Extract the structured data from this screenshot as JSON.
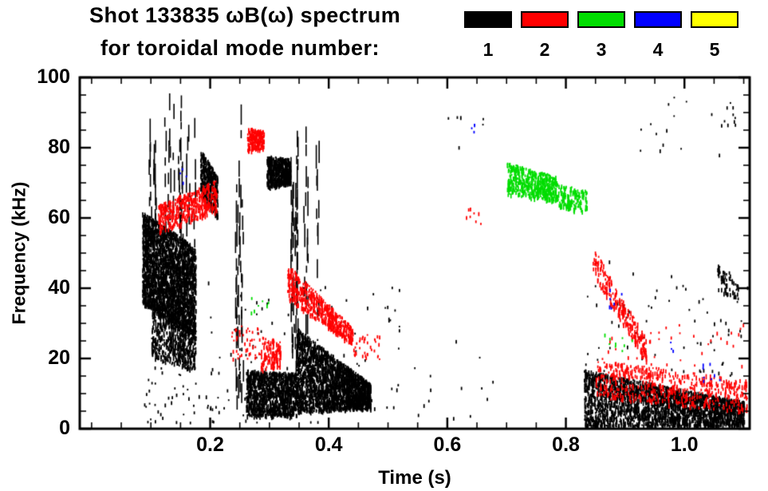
{
  "chart_data": {
    "type": "scatter",
    "title": "Shot 133835 ωB(ω) spectrum",
    "subtitle": "for toroidal mode number:",
    "xlabel": "Time (s)",
    "ylabel": "Frequency (kHz)",
    "xlim": [
      -0.02,
      1.11
    ],
    "ylim": [
      0,
      100
    ],
    "xticks": [
      0.2,
      0.4,
      0.6,
      0.8,
      1.0
    ],
    "yticks": [
      0,
      20,
      40,
      60,
      80,
      100
    ],
    "x_minor_step": 0.05,
    "y_minor_step": 5,
    "grid": false,
    "legend_position": "top-right",
    "legend": [
      {
        "label": "1",
        "color": "#000000"
      },
      {
        "label": "2",
        "color": "#ff0000"
      },
      {
        "label": "3",
        "color": "#00dd00"
      },
      {
        "label": "4",
        "color": "#0000ff"
      },
      {
        "label": "5",
        "color": "#ffff00"
      }
    ],
    "clusters": [
      {
        "mode": 1,
        "shape": "band",
        "t": [
          0.085,
          0.175
        ],
        "f0": [
          36,
          62
        ],
        "f1": [
          26,
          52
        ],
        "n": 2600
      },
      {
        "mode": 1,
        "shape": "band",
        "t": [
          0.1,
          0.175
        ],
        "f0": [
          20,
          38
        ],
        "f1": [
          17,
          28
        ],
        "n": 500
      },
      {
        "mode": 1,
        "shape": "streaks",
        "t": [
          0.095,
          0.175
        ],
        "f0": [
          50,
          62
        ],
        "f1": [
          72,
          97
        ],
        "n": 16
      },
      {
        "mode": 1,
        "shape": "streaks",
        "t": [
          0.1,
          0.17
        ],
        "f0": [
          18,
          24
        ],
        "f1": [
          30,
          45
        ],
        "n": 10
      },
      {
        "mode": 1,
        "shape": "band",
        "t": [
          0.183,
          0.212
        ],
        "f0": [
          67,
          80
        ],
        "f1": [
          60,
          72
        ],
        "n": 380
      },
      {
        "mode": 1,
        "shape": "specks",
        "t": [
          0.08,
          0.22
        ],
        "f0": [
          2,
          18
        ],
        "n": 50
      },
      {
        "mode": 1,
        "shape": "streaks",
        "t": [
          0.24,
          0.255
        ],
        "f0": [
          5,
          12
        ],
        "f1": [
          60,
          95
        ],
        "n": 5
      },
      {
        "mode": 1,
        "shape": "band",
        "t": [
          0.26,
          0.345
        ],
        "f0": [
          4,
          17
        ],
        "f1": [
          4,
          16
        ],
        "n": 1100
      },
      {
        "mode": 1,
        "shape": "band",
        "t": [
          0.295,
          0.335
        ],
        "f0": [
          69,
          78
        ],
        "f1": [
          70,
          77
        ],
        "n": 520
      },
      {
        "mode": 1,
        "shape": "streaks",
        "t": [
          0.332,
          0.348
        ],
        "f0": [
          12,
          20
        ],
        "f1": [
          68,
          92
        ],
        "n": 6
      },
      {
        "mode": 1,
        "shape": "band",
        "t": [
          0.345,
          0.47
        ],
        "f0": [
          5,
          29
        ],
        "f1": [
          6,
          13
        ],
        "n": 2300
      },
      {
        "mode": 1,
        "shape": "streaks",
        "t": [
          0.358,
          0.382
        ],
        "f0": [
          26,
          34
        ],
        "f1": [
          58,
          88
        ],
        "n": 5
      },
      {
        "mode": 1,
        "shape": "specks",
        "t": [
          0.19,
          0.52
        ],
        "f0": [
          2,
          42
        ],
        "n": 110
      },
      {
        "mode": 1,
        "shape": "specks",
        "t": [
          0.53,
          0.68
        ],
        "f0": [
          3,
          26
        ],
        "n": 14
      },
      {
        "mode": 1,
        "shape": "specks",
        "t": [
          0.6,
          0.67
        ],
        "f0": [
          80,
          90
        ],
        "n": 6
      },
      {
        "mode": 1,
        "shape": "band",
        "t": [
          0.83,
          1.1
        ],
        "f0": [
          1,
          17
        ],
        "f1": [
          1,
          8
        ],
        "n": 2500
      },
      {
        "mode": 1,
        "shape": "specks",
        "t": [
          0.83,
          1.12
        ],
        "f0": [
          14,
          48
        ],
        "n": 70
      },
      {
        "mode": 1,
        "shape": "specks",
        "t": [
          0.92,
          1.06
        ],
        "f0": [
          78,
          95
        ],
        "n": 14
      },
      {
        "mode": 1,
        "shape": "band",
        "t": [
          1.055,
          1.09
        ],
        "f0": [
          40,
          47
        ],
        "f1": [
          36,
          42
        ],
        "n": 70
      },
      {
        "mode": 1,
        "shape": "specks",
        "t": [
          1.06,
          1.09
        ],
        "f0": [
          84,
          93
        ],
        "n": 10
      },
      {
        "mode": 2,
        "shape": "band",
        "t": [
          0.112,
          0.21
        ],
        "f0": [
          56,
          64
        ],
        "f1": [
          62,
          71
        ],
        "n": 430
      },
      {
        "mode": 2,
        "shape": "band",
        "t": [
          0.262,
          0.29
        ],
        "f0": [
          79,
          86
        ],
        "f1": [
          80,
          85
        ],
        "n": 170
      },
      {
        "mode": 2,
        "shape": "specks",
        "t": [
          0.235,
          0.285
        ],
        "f0": [
          20,
          30
        ],
        "n": 45
      },
      {
        "mode": 2,
        "shape": "band",
        "t": [
          0.285,
          0.318
        ],
        "f0": [
          17,
          27
        ],
        "f1": [
          18,
          25
        ],
        "n": 120
      },
      {
        "mode": 2,
        "shape": "band",
        "t": [
          0.33,
          0.44
        ],
        "f0": [
          37,
          47
        ],
        "f1": [
          24,
          29
        ],
        "n": 520
      },
      {
        "mode": 2,
        "shape": "specks",
        "t": [
          0.44,
          0.485
        ],
        "f0": [
          20,
          27
        ],
        "n": 35
      },
      {
        "mode": 2,
        "shape": "specks",
        "t": [
          0.62,
          0.66
        ],
        "f0": [
          58,
          64
        ],
        "n": 8
      },
      {
        "mode": 2,
        "shape": "band",
        "t": [
          0.845,
          0.935
        ],
        "f0": [
          44,
          52
        ],
        "f1": [
          19,
          26
        ],
        "n": 230
      },
      {
        "mode": 2,
        "shape": "band",
        "t": [
          0.85,
          1.105
        ],
        "f0": [
          9,
          20
        ],
        "f1": [
          5,
          14
        ],
        "n": 520
      },
      {
        "mode": 2,
        "shape": "specks",
        "t": [
          0.86,
          1.1
        ],
        "f0": [
          18,
          30
        ],
        "n": 40
      },
      {
        "mode": 3,
        "shape": "band",
        "t": [
          0.7,
          0.785
        ],
        "f0": [
          67,
          76
        ],
        "f1": [
          65,
          72
        ],
        "n": 480
      },
      {
        "mode": 3,
        "shape": "band",
        "t": [
          0.785,
          0.835
        ],
        "f0": [
          63,
          70
        ],
        "f1": [
          62,
          68
        ],
        "n": 150
      },
      {
        "mode": 3,
        "shape": "specks",
        "t": [
          0.26,
          0.3
        ],
        "f0": [
          33,
          40
        ],
        "n": 8
      },
      {
        "mode": 3,
        "shape": "specks",
        "t": [
          0.86,
          0.92
        ],
        "f0": [
          22,
          29
        ],
        "n": 9
      },
      {
        "mode": 4,
        "shape": "specks",
        "t": [
          0.148,
          0.162
        ],
        "f0": [
          70,
          76
        ],
        "n": 4
      },
      {
        "mode": 4,
        "shape": "specks",
        "t": [
          0.63,
          0.65
        ],
        "f0": [
          84,
          88
        ],
        "n": 4
      },
      {
        "mode": 4,
        "shape": "specks",
        "t": [
          0.872,
          0.895
        ],
        "f0": [
          34,
          41
        ],
        "n": 6
      },
      {
        "mode": 4,
        "shape": "specks",
        "t": [
          1.03,
          1.06
        ],
        "f0": [
          13,
          19
        ],
        "n": 8
      },
      {
        "mode": 4,
        "shape": "specks",
        "t": [
          0.97,
          0.99
        ],
        "f0": [
          22,
          26
        ],
        "n": 3
      }
    ]
  }
}
